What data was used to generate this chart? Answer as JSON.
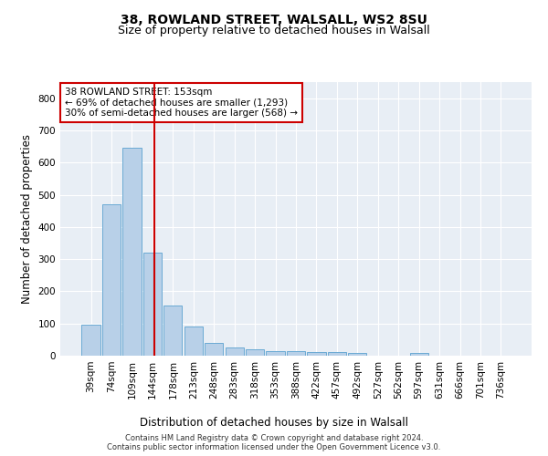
{
  "title1": "38, ROWLAND STREET, WALSALL, WS2 8SU",
  "title2": "Size of property relative to detached houses in Walsall",
  "xlabel": "Distribution of detached houses by size in Walsall",
  "ylabel": "Number of detached properties",
  "categories": [
    "39sqm",
    "74sqm",
    "109sqm",
    "144sqm",
    "178sqm",
    "213sqm",
    "248sqm",
    "283sqm",
    "318sqm",
    "353sqm",
    "388sqm",
    "422sqm",
    "457sqm",
    "492sqm",
    "527sqm",
    "562sqm",
    "597sqm",
    "631sqm",
    "666sqm",
    "701sqm",
    "736sqm"
  ],
  "values": [
    95,
    470,
    645,
    320,
    155,
    90,
    40,
    25,
    20,
    15,
    15,
    12,
    10,
    8,
    0,
    0,
    8,
    0,
    0,
    0,
    0
  ],
  "bar_color": "#b8d0e8",
  "bar_edge_color": "#6aaad4",
  "vline_color": "#cc0000",
  "vline_x": 3.08,
  "annotation_text": "38 ROWLAND STREET: 153sqm\n← 69% of detached houses are smaller (1,293)\n30% of semi-detached houses are larger (568) →",
  "annotation_box_color": "#ffffff",
  "annotation_box_edge_color": "#cc0000",
  "ylim": [
    0,
    850
  ],
  "yticks": [
    0,
    100,
    200,
    300,
    400,
    500,
    600,
    700,
    800
  ],
  "background_color": "#e8eef5",
  "grid_color": "#ffffff",
  "footer": "Contains HM Land Registry data © Crown copyright and database right 2024.\nContains public sector information licensed under the Open Government Licence v3.0.",
  "title1_fontsize": 10,
  "title2_fontsize": 9,
  "xlabel_fontsize": 8.5,
  "ylabel_fontsize": 8.5,
  "tick_fontsize": 7.5,
  "annotation_fontsize": 7.5,
  "footer_fontsize": 6
}
